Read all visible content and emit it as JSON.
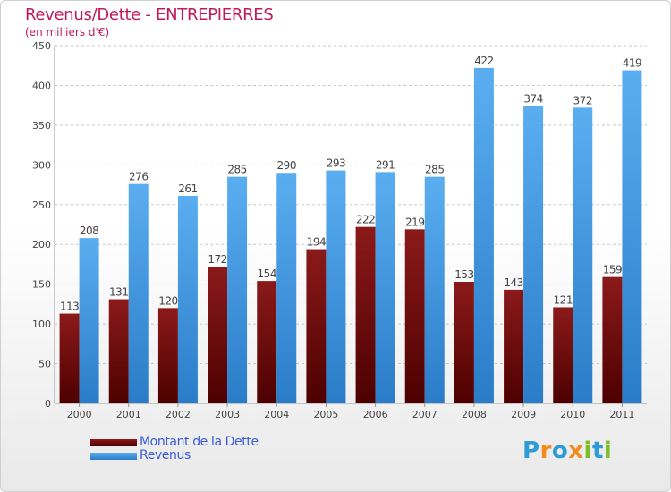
{
  "header": {
    "title": "Revenus/Dette - ENTREPIERRES",
    "subtitle": "(en milliers d'€)"
  },
  "colors": {
    "debt": "#8b1a1a",
    "debt_dark": "#4d0000",
    "revenue": "#5aaef0",
    "revenue_dark": "#2a7cc8",
    "title": "#c2185b",
    "legend_text": "#3a5bd8"
  },
  "chart_data": {
    "type": "bar",
    "title": "Revenus/Dette - ENTREPIERRES",
    "ylabel": "(en milliers d'€)",
    "xlabel": "",
    "ylim": [
      0,
      450
    ],
    "yticks": [
      0,
      50,
      100,
      150,
      200,
      250,
      300,
      350,
      400,
      450
    ],
    "grid": true,
    "legend_position": "bottom-left",
    "categories": [
      "2000",
      "2001",
      "2002",
      "2003",
      "2004",
      "2005",
      "2006",
      "2007",
      "2008",
      "2009",
      "2010",
      "2011"
    ],
    "series": [
      {
        "name": "Montant de la Dette",
        "values": [
          113,
          131,
          120,
          172,
          154,
          194,
          222,
          219,
          153,
          143,
          121,
          159
        ]
      },
      {
        "name": "Revenus",
        "values": [
          208,
          276,
          261,
          285,
          290,
          293,
          291,
          285,
          422,
          374,
          372,
          419
        ]
      }
    ]
  },
  "legend": {
    "debt_label": "Montant de la Dette",
    "revenue_label": "Revenus"
  },
  "logo": {
    "text": "Proxiti",
    "letter_colors": [
      "#2f9ad6",
      "#f28c1e",
      "#2f9ad6",
      "#f28c1e",
      "#7cbd2a",
      "#2f9ad6",
      "#7cbd2a"
    ]
  }
}
